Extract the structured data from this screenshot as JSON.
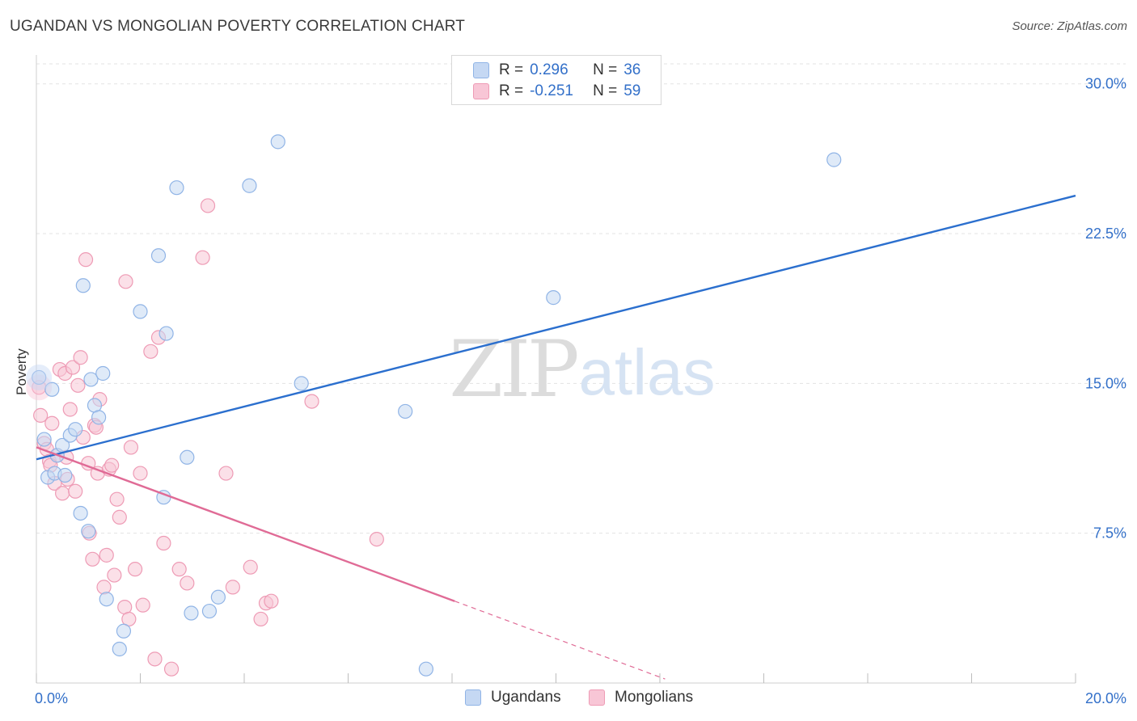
{
  "title": "UGANDAN VS MONGOLIAN POVERTY CORRELATION CHART",
  "source": "Source: ZipAtlas.com",
  "watermark": {
    "zip": "ZIP",
    "atlas": "atlas"
  },
  "legend": {
    "r_label": "R =",
    "n_label": "N =",
    "series": [
      {
        "name": "Ugandans",
        "r": "0.296",
        "n": "36"
      },
      {
        "name": "Mongolians",
        "r": "-0.251",
        "n": "59"
      }
    ]
  },
  "colors": {
    "ugandans_fill": "#c5d8f3",
    "ugandans_stroke": "#90b4e6",
    "ugandans_line": "#2b6fce",
    "mongolians_fill": "#f8c6d6",
    "mongolians_stroke": "#ee9bb5",
    "mongolians_line": "#e06b96",
    "tick_label": "#3370c9"
  },
  "chart_data": {
    "type": "scatter",
    "title": "UGANDAN VS MONGOLIAN POVERTY CORRELATION CHART",
    "xlabel": "",
    "ylabel": "Poverty",
    "xlim": [
      0,
      20
    ],
    "ylim": [
      0,
      31
    ],
    "x_tick_labels": [
      {
        "value": 0,
        "label": "0.0%"
      },
      {
        "value": 20,
        "label": "20.0%"
      }
    ],
    "y_tick_labels": [
      {
        "value": 7.5,
        "label": "7.5%"
      },
      {
        "value": 15,
        "label": "15.0%"
      },
      {
        "value": 22.5,
        "label": "22.5%"
      },
      {
        "value": 30,
        "label": "30.0%"
      }
    ],
    "grid": true,
    "series": [
      {
        "name": "Ugandans",
        "r": 0.296,
        "n": 36,
        "trend": {
          "x": [
            0,
            20
          ],
          "y": [
            11.2,
            24.4
          ]
        },
        "points": [
          [
            0.05,
            15.3
          ],
          [
            0.15,
            12.2
          ],
          [
            0.3,
            14.7
          ],
          [
            0.22,
            10.3
          ],
          [
            0.35,
            10.5
          ],
          [
            0.4,
            11.4
          ],
          [
            0.5,
            11.9
          ],
          [
            0.55,
            10.4
          ],
          [
            0.65,
            12.4
          ],
          [
            0.75,
            12.7
          ],
          [
            0.85,
            8.5
          ],
          [
            0.9,
            19.9
          ],
          [
            1.0,
            7.6
          ],
          [
            1.05,
            15.2
          ],
          [
            1.12,
            13.9
          ],
          [
            1.2,
            13.3
          ],
          [
            1.28,
            15.5
          ],
          [
            1.35,
            4.2
          ],
          [
            1.6,
            1.7
          ],
          [
            1.68,
            2.6
          ],
          [
            2.0,
            18.6
          ],
          [
            2.35,
            21.4
          ],
          [
            2.45,
            9.3
          ],
          [
            2.5,
            17.5
          ],
          [
            2.7,
            24.8
          ],
          [
            2.9,
            11.3
          ],
          [
            2.98,
            3.5
          ],
          [
            3.33,
            3.6
          ],
          [
            3.5,
            4.3
          ],
          [
            4.1,
            24.9
          ],
          [
            4.65,
            27.1
          ],
          [
            5.1,
            15.0
          ],
          [
            7.1,
            13.6
          ],
          [
            7.5,
            0.7
          ],
          [
            9.95,
            19.3
          ],
          [
            15.35,
            26.2
          ]
        ]
      },
      {
        "name": "Mongolians",
        "r": -0.251,
        "n": 59,
        "trend": {
          "x": [
            0,
            8.05
          ],
          "y": [
            11.8,
            4.1
          ]
        },
        "trend_dashed": {
          "x": [
            8.05,
            12.1
          ],
          "y": [
            4.1,
            0.2
          ]
        },
        "points": [
          [
            0.05,
            14.8
          ],
          [
            0.08,
            13.4
          ],
          [
            0.15,
            12.0
          ],
          [
            0.2,
            11.7
          ],
          [
            0.25,
            11.1
          ],
          [
            0.3,
            13.0
          ],
          [
            0.35,
            10.0
          ],
          [
            0.4,
            11.4
          ],
          [
            0.45,
            15.7
          ],
          [
            0.5,
            9.5
          ],
          [
            0.55,
            15.5
          ],
          [
            0.6,
            10.2
          ],
          [
            0.65,
            13.7
          ],
          [
            0.7,
            15.8
          ],
          [
            0.75,
            9.6
          ],
          [
            0.8,
            14.9
          ],
          [
            0.85,
            16.3
          ],
          [
            0.9,
            12.3
          ],
          [
            0.95,
            21.2
          ],
          [
            1.0,
            11.0
          ],
          [
            1.02,
            7.5
          ],
          [
            1.08,
            6.2
          ],
          [
            1.12,
            12.9
          ],
          [
            1.18,
            10.5
          ],
          [
            1.22,
            14.2
          ],
          [
            1.3,
            4.8
          ],
          [
            1.35,
            6.4
          ],
          [
            1.4,
            10.7
          ],
          [
            1.45,
            10.9
          ],
          [
            1.5,
            5.4
          ],
          [
            1.55,
            9.2
          ],
          [
            1.6,
            8.3
          ],
          [
            1.7,
            3.8
          ],
          [
            1.72,
            20.1
          ],
          [
            1.78,
            3.2
          ],
          [
            1.82,
            11.8
          ],
          [
            1.9,
            5.7
          ],
          [
            2.0,
            10.5
          ],
          [
            2.05,
            3.9
          ],
          [
            2.2,
            16.6
          ],
          [
            2.28,
            1.2
          ],
          [
            2.35,
            17.3
          ],
          [
            2.45,
            7.0
          ],
          [
            2.6,
            0.7
          ],
          [
            2.75,
            5.7
          ],
          [
            2.9,
            5.0
          ],
          [
            3.2,
            21.3
          ],
          [
            3.3,
            23.9
          ],
          [
            3.65,
            10.5
          ],
          [
            3.78,
            4.8
          ],
          [
            4.12,
            5.8
          ],
          [
            4.32,
            3.2
          ],
          [
            4.42,
            4.0
          ],
          [
            4.52,
            4.1
          ],
          [
            5.3,
            14.1
          ],
          [
            6.55,
            7.2
          ],
          [
            0.58,
            11.3
          ],
          [
            1.15,
            12.8
          ],
          [
            0.27,
            10.9
          ]
        ]
      }
    ]
  }
}
